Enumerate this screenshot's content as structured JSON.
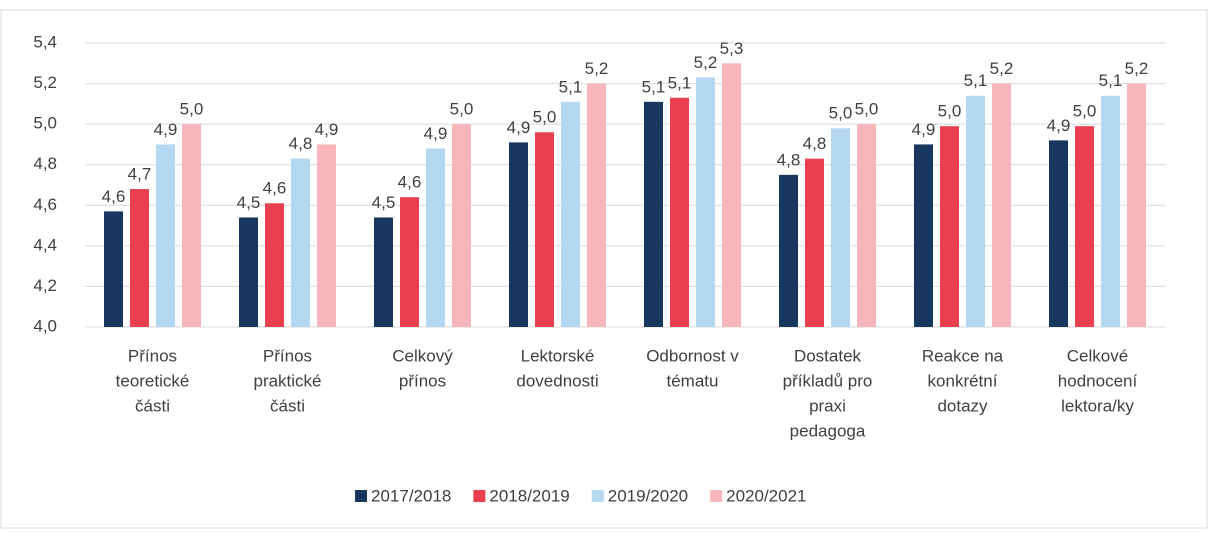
{
  "chart_data": {
    "type": "bar",
    "categories": [
      [
        "Přínos",
        "teoretické",
        "části"
      ],
      [
        "Přínos",
        "praktické",
        "části"
      ],
      [
        "Celkový",
        "přínos"
      ],
      [
        "Lektorské",
        "dovednosti"
      ],
      [
        "Odbornost v",
        "tématu"
      ],
      [
        "Dostatek",
        "příkladů pro",
        "praxi",
        "pedagoga"
      ],
      [
        "Reakce na",
        "konkrétní",
        "dotazy"
      ],
      [
        "Celkové",
        "hodnocení",
        "lektora/ky"
      ]
    ],
    "series": [
      {
        "name": "2017/2018",
        "color": "#17375e",
        "values": [
          4.57,
          4.54,
          4.54,
          4.91,
          5.11,
          4.75,
          4.9,
          4.92
        ],
        "value_labels": [
          "4,6",
          "4,5",
          "4,5",
          "4,9",
          "5,1",
          "4,8",
          "4,9",
          "4,9"
        ]
      },
      {
        "name": "2018/2019",
        "color": "#e8404f",
        "values": [
          4.68,
          4.61,
          4.64,
          4.96,
          5.13,
          4.83,
          4.99,
          4.99
        ],
        "value_labels": [
          "4,7",
          "4,6",
          "4,6",
          "5,0",
          "5,1",
          "4,8",
          "5,0",
          "5,0"
        ]
      },
      {
        "name": "2019/2020",
        "color": "#b4d7f2",
        "values": [
          4.9,
          4.83,
          4.88,
          5.11,
          5.23,
          4.98,
          5.14,
          5.14
        ],
        "value_labels": [
          "4,9",
          "4,8",
          "4,9",
          "5,1",
          "5,2",
          "5,0",
          "5,1",
          "5,1"
        ]
      },
      {
        "name": "2020/2021",
        "color": "#f7b6bc",
        "values": [
          5.0,
          4.9,
          5.0,
          5.2,
          5.3,
          5.0,
          5.2,
          5.2
        ],
        "value_labels": [
          "5,0",
          "4,9",
          "5,0",
          "5,2",
          "5,3",
          "5,0",
          "5,2",
          "5,2"
        ]
      }
    ],
    "ylim": [
      4.0,
      5.4
    ],
    "yticks": [
      {
        "value": 4.0,
        "label": "4,0"
      },
      {
        "value": 4.2,
        "label": "4,2"
      },
      {
        "value": 4.4,
        "label": "4,4"
      },
      {
        "value": 4.6,
        "label": "4,6"
      },
      {
        "value": 4.8,
        "label": "4,8"
      },
      {
        "value": 5.0,
        "label": "5,0"
      },
      {
        "value": 5.2,
        "label": "5,2"
      },
      {
        "value": 5.4,
        "label": "5,4"
      }
    ],
    "grid": true,
    "legend": "bottom"
  }
}
